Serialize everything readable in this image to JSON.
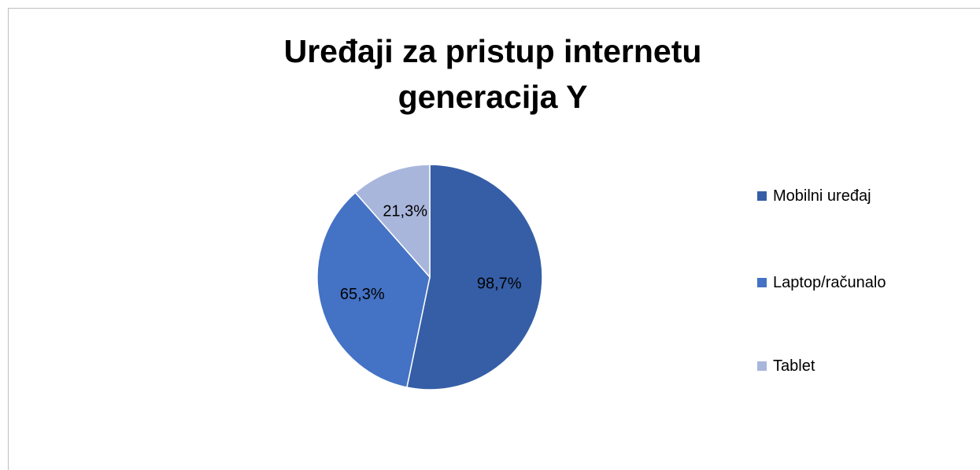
{
  "chart_data": {
    "type": "pie",
    "title": "Uređaji za pristup internetu generacija Y",
    "categories": [
      "Mobilni uređaj",
      "Laptop/računalo",
      "Tablet"
    ],
    "values": [
      98.7,
      65.3,
      21.3
    ],
    "value_labels": [
      "98,7%",
      "65,3%",
      "21,3%"
    ],
    "colors": [
      "#355ea6",
      "#4472c4",
      "#a9b6dc"
    ],
    "legend": "right"
  }
}
